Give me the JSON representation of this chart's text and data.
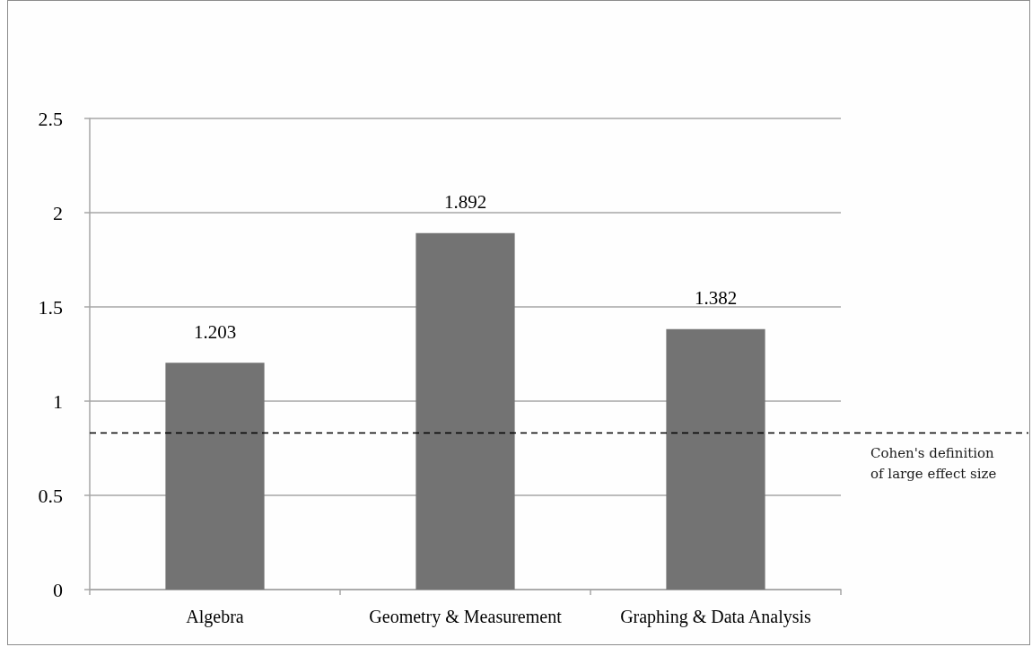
{
  "chart_data": {
    "type": "bar",
    "categories": [
      "Algebra",
      "Geometry & Measurement",
      "Graphing & Data Analysis"
    ],
    "values": [
      1.203,
      1.892,
      1.382
    ],
    "color": "#737373",
    "ylim": [
      0,
      2.5
    ],
    "yticks": [
      0,
      0.5,
      1,
      1.5,
      2,
      2.5
    ],
    "grid": "y",
    "data_labels": true,
    "ref_lines": [
      {
        "axis": "y",
        "value": 0.83,
        "label": "Cohen's definition of large effect size",
        "color": "#000000",
        "line_style": "dashed"
      }
    ]
  }
}
